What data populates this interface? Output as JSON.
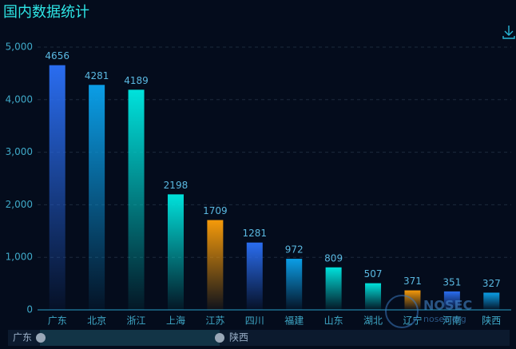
{
  "chart_data": {
    "type": "bar",
    "title": "国内数据统计",
    "categories": [
      "广东",
      "北京",
      "浙江",
      "上海",
      "江苏",
      "四川",
      "福建",
      "山东",
      "湖北",
      "辽宁",
      "河南",
      "陕西"
    ],
    "values": [
      4656,
      4281,
      4189,
      2198,
      1709,
      1281,
      972,
      809,
      507,
      371,
      351,
      327
    ],
    "colors": [
      "#2a6df0",
      "#0b9ee6",
      "#00e2dc",
      "#00e2dc",
      "#f59a0a",
      "#2a6df0",
      "#0b9ee6",
      "#00e2dc",
      "#00e2dc",
      "#f59a0a",
      "#2a6df0",
      "#0b9ee6"
    ],
    "ylim": [
      0,
      5000
    ],
    "yticks": [
      0,
      {
        "value": 1000,
        "label": "1,000"
      },
      {
        "value": 2000,
        "label": "2,000"
      },
      {
        "value": 3000,
        "label": "3,000"
      },
      {
        "value": 4000,
        "label": "4,000"
      },
      {
        "value": 5000,
        "label": "5,000"
      }
    ],
    "grid": true,
    "watermark": [
      "NOSEC",
      "nosec.org"
    ]
  }
}
